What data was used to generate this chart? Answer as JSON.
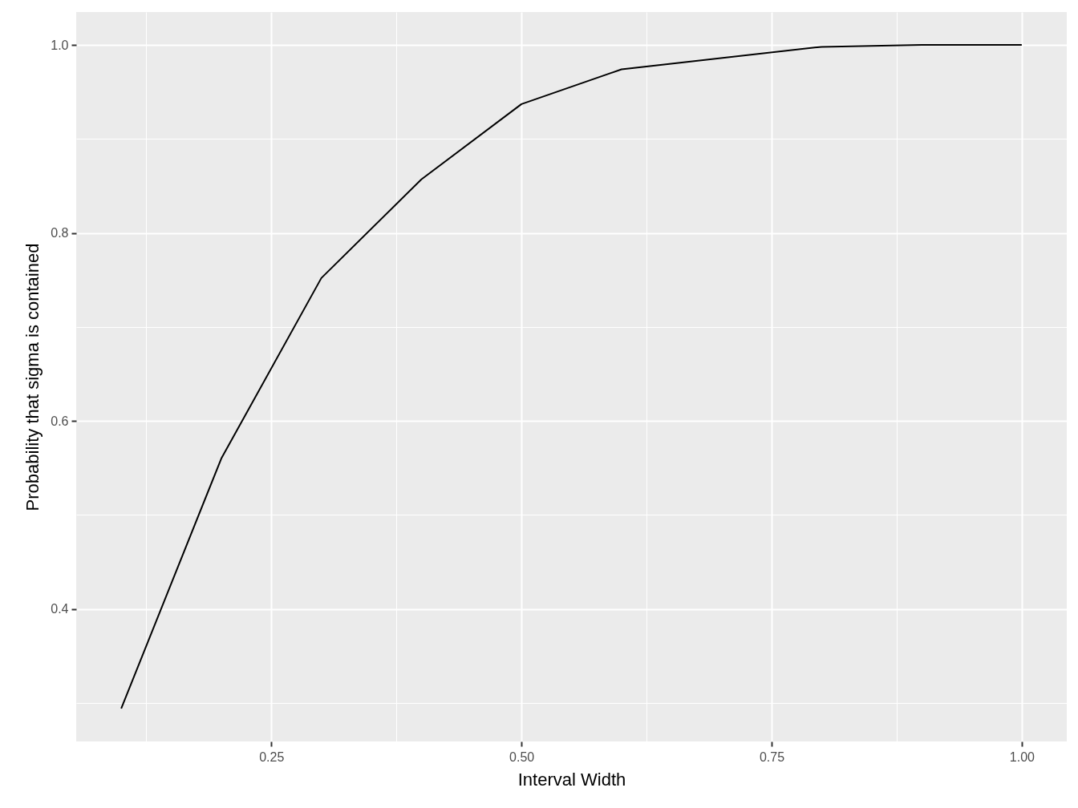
{
  "chart_data": {
    "type": "line",
    "xlabel": "Interval Width",
    "ylabel": "Probability that sigma is contained",
    "x": [
      0.1,
      0.2,
      0.3,
      0.4,
      0.5,
      0.6,
      0.8,
      0.9,
      1.0
    ],
    "series": [
      {
        "color": "#000000",
        "values": [
          0.294,
          0.56,
          0.752,
          0.857,
          0.937,
          0.974,
          0.998,
          1.0,
          1.0
        ]
      }
    ],
    "xlim": [
      0.055,
      1.045
    ],
    "ylim": [
      0.259,
      1.035
    ],
    "xticks": [
      {
        "value": 0.125,
        "label": null
      },
      {
        "value": 0.25,
        "label": "0.25"
      },
      {
        "value": 0.375,
        "label": null
      },
      {
        "value": 0.5,
        "label": "0.50"
      },
      {
        "value": 0.625,
        "label": null
      },
      {
        "value": 0.75,
        "label": "0.75"
      },
      {
        "value": 0.875,
        "label": null
      },
      {
        "value": 1.0,
        "label": "1.00"
      }
    ],
    "yticks": [
      {
        "value": 0.3,
        "label": null
      },
      {
        "value": 0.4,
        "label": "0.4"
      },
      {
        "value": 0.5,
        "label": null
      },
      {
        "value": 0.6,
        "label": "0.6"
      },
      {
        "value": 0.7,
        "label": null
      },
      {
        "value": 0.8,
        "label": "0.8"
      },
      {
        "value": 0.9,
        "label": null
      },
      {
        "value": 1.0,
        "label": "1.0"
      }
    ],
    "grid": true
  }
}
